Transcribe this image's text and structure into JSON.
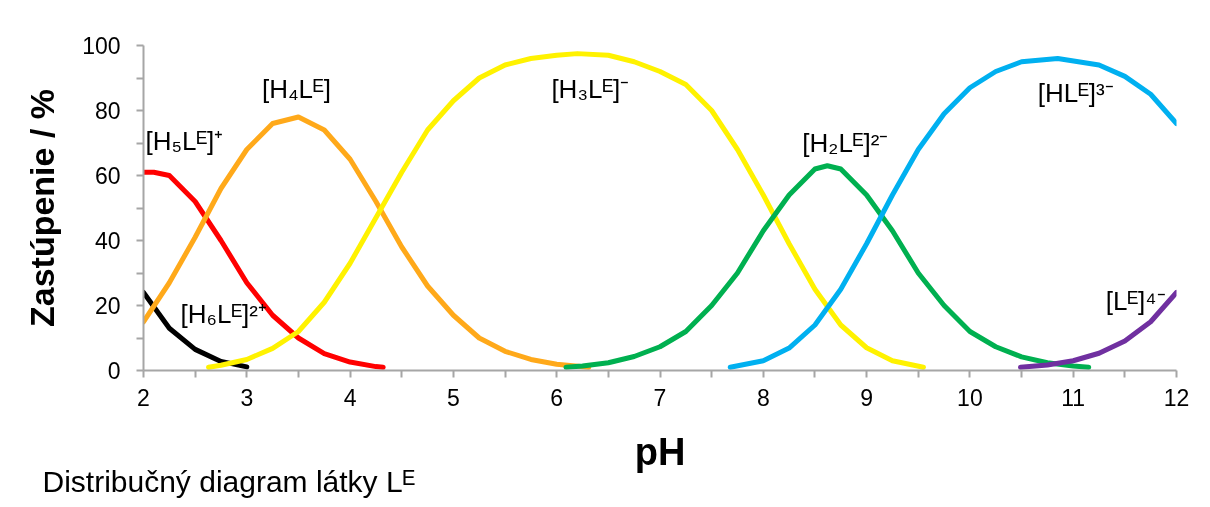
{
  "chart_data": {
    "type": "line",
    "xlabel": "pH",
    "ylabel": "Zastúpenie / %",
    "annotations": [
      "Distribučný diagram látky Lᴱ"
    ],
    "xlim": [
      2,
      12
    ],
    "ylim": [
      0,
      100
    ],
    "xticks": [
      2,
      {
        "value": 2.5,
        "label": null
      },
      3,
      {
        "value": 3.5,
        "label": null
      },
      4,
      {
        "value": 4.5,
        "label": null
      },
      5,
      {
        "value": 5.5,
        "label": null
      },
      6,
      {
        "value": 6.5,
        "label": null
      },
      7,
      {
        "value": 7.5,
        "label": null
      },
      8,
      {
        "value": 8.5,
        "label": null
      },
      9,
      {
        "value": 9.5,
        "label": null
      },
      10,
      {
        "value": 10.5,
        "label": null
      },
      11,
      {
        "value": 11.5,
        "label": null
      },
      12
    ],
    "yticks": [
      0,
      {
        "value": 10,
        "label": null
      },
      20,
      {
        "value": 30,
        "label": null
      },
      40,
      {
        "value": 50,
        "label": null
      },
      60,
      {
        "value": 70,
        "label": null
      },
      80,
      {
        "value": 90,
        "label": null
      },
      100
    ],
    "grid": false,
    "legend": false,
    "line_style": "solid",
    "series": [
      {
        "name": "[H₆Lᴱ]²⁺",
        "color": "#000000",
        "x": [
          2,
          2.25,
          2.5,
          2.75,
          3
        ],
        "values": [
          24,
          13,
          6.5,
          2.8,
          1.1
        ]
      },
      {
        "name": "[H₅Lᴱ]⁺",
        "color": "#ff0000",
        "x": [
          2,
          2.1,
          2.25,
          2.5,
          2.75,
          3,
          3.25,
          3.5,
          3.75,
          4,
          4.25,
          4.32
        ],
        "values": [
          61,
          61,
          60,
          52,
          40,
          27,
          17,
          10,
          5.2,
          2.6,
          1.2,
          1.0
        ]
      },
      {
        "name": "[H₄Lᴱ]",
        "color": "#ffa91a",
        "x": [
          2,
          2.25,
          2.5,
          2.75,
          3,
          3.25,
          3.5,
          3.75,
          4,
          4.25,
          4.5,
          4.75,
          5,
          5.25,
          5.5,
          5.75,
          6,
          6.31
        ],
        "values": [
          15,
          27,
          41,
          56,
          68,
          76,
          78,
          74,
          65,
          52,
          38,
          26,
          17,
          10,
          5.9,
          3.4,
          1.9,
          1.0
        ]
      },
      {
        "name": "[H₃Lᴱ]⁻",
        "color": "#fff200",
        "x": [
          2.63,
          2.75,
          3,
          3.25,
          3.5,
          3.75,
          4,
          4.25,
          4.5,
          4.75,
          5,
          5.25,
          5.5,
          5.75,
          6,
          6.2,
          6.5,
          6.75,
          7,
          7.25,
          7.5,
          7.75,
          8,
          8.25,
          8.5,
          8.75,
          9,
          9.25,
          9.55
        ],
        "values": [
          1.0,
          1.6,
          3.4,
          6.8,
          12,
          21,
          33,
          47,
          61,
          74,
          83,
          90,
          94,
          96,
          97,
          97.5,
          97,
          95,
          92,
          88,
          80,
          68,
          54,
          39,
          25,
          14,
          7,
          3,
          1.0
        ]
      },
      {
        "name": "[H₂Lᴱ]²⁻",
        "color": "#00b050",
        "x": [
          6.09,
          6.25,
          6.5,
          6.75,
          7,
          7.25,
          7.5,
          7.75,
          8,
          8.25,
          8.5,
          8.62,
          8.75,
          9,
          9.25,
          9.5,
          9.75,
          10,
          10.25,
          10.5,
          10.75,
          11,
          11.15
        ],
        "values": [
          1.0,
          1.4,
          2.4,
          4.3,
          7.3,
          12,
          20,
          30,
          43,
          54,
          62,
          63,
          62,
          54,
          43,
          30,
          20,
          12,
          7.3,
          4.2,
          2.4,
          1.4,
          1.0
        ]
      },
      {
        "name": "[HLᴱ]³⁻",
        "color": "#00b0f0",
        "x": [
          7.68,
          8,
          8.25,
          8.5,
          8.75,
          9,
          9.25,
          9.5,
          9.75,
          10,
          10.25,
          10.5,
          10.85,
          11.25,
          11.5,
          11.75,
          12
        ],
        "values": [
          1.0,
          3.0,
          6.9,
          14,
          25,
          39,
          54,
          68,
          79,
          87,
          92,
          95,
          96,
          94,
          90.5,
          85,
          76
        ]
      },
      {
        "name": "[Lᴱ]⁴⁻",
        "color": "#7030a0",
        "x": [
          10.49,
          10.75,
          11,
          11.25,
          11.5,
          11.75,
          12
        ],
        "values": [
          1.0,
          1.7,
          3.0,
          5.3,
          9.1,
          15,
          24
        ]
      }
    ]
  }
}
